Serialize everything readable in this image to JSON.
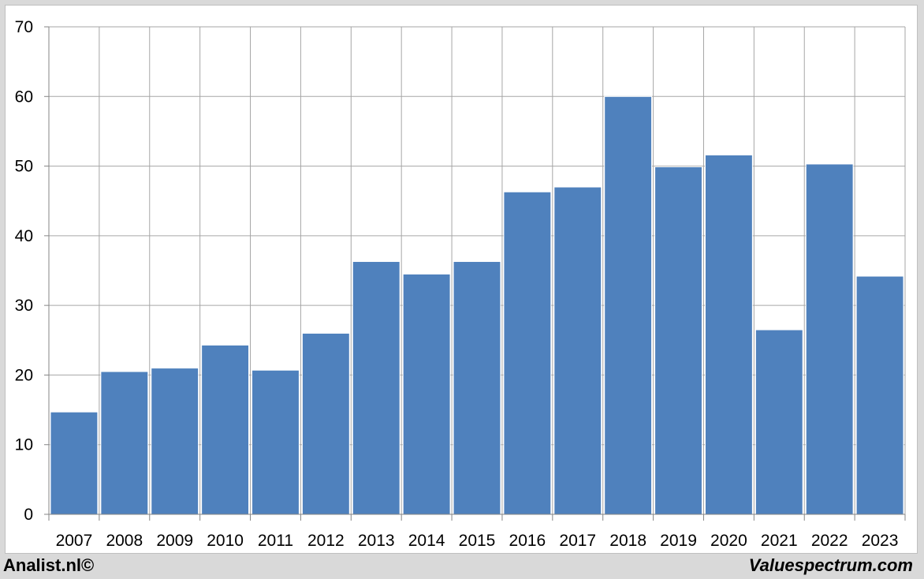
{
  "footer": {
    "left_label": "Analist.nl©",
    "right_label": "Valuespectrum.com"
  },
  "colors": {
    "bar": "#4f81bd",
    "grid": "#a6a6a6",
    "axis": "#868686"
  },
  "chart_data": {
    "type": "bar",
    "categories": [
      "2007",
      "2008",
      "2009",
      "2010",
      "2011",
      "2012",
      "2013",
      "2014",
      "2015",
      "2016",
      "2017",
      "2018",
      "2019",
      "2020",
      "2021",
      "2022",
      "2023"
    ],
    "values": [
      14.7,
      20.5,
      21.0,
      24.3,
      20.7,
      26.0,
      36.3,
      34.5,
      36.3,
      46.3,
      47.0,
      60.0,
      49.9,
      51.6,
      26.5,
      50.3,
      34.2
    ],
    "ylim": [
      0,
      70
    ],
    "yticks": [
      0,
      10,
      20,
      30,
      40,
      50,
      60,
      70
    ],
    "grid": true,
    "title": "",
    "xlabel": "",
    "ylabel": ""
  }
}
